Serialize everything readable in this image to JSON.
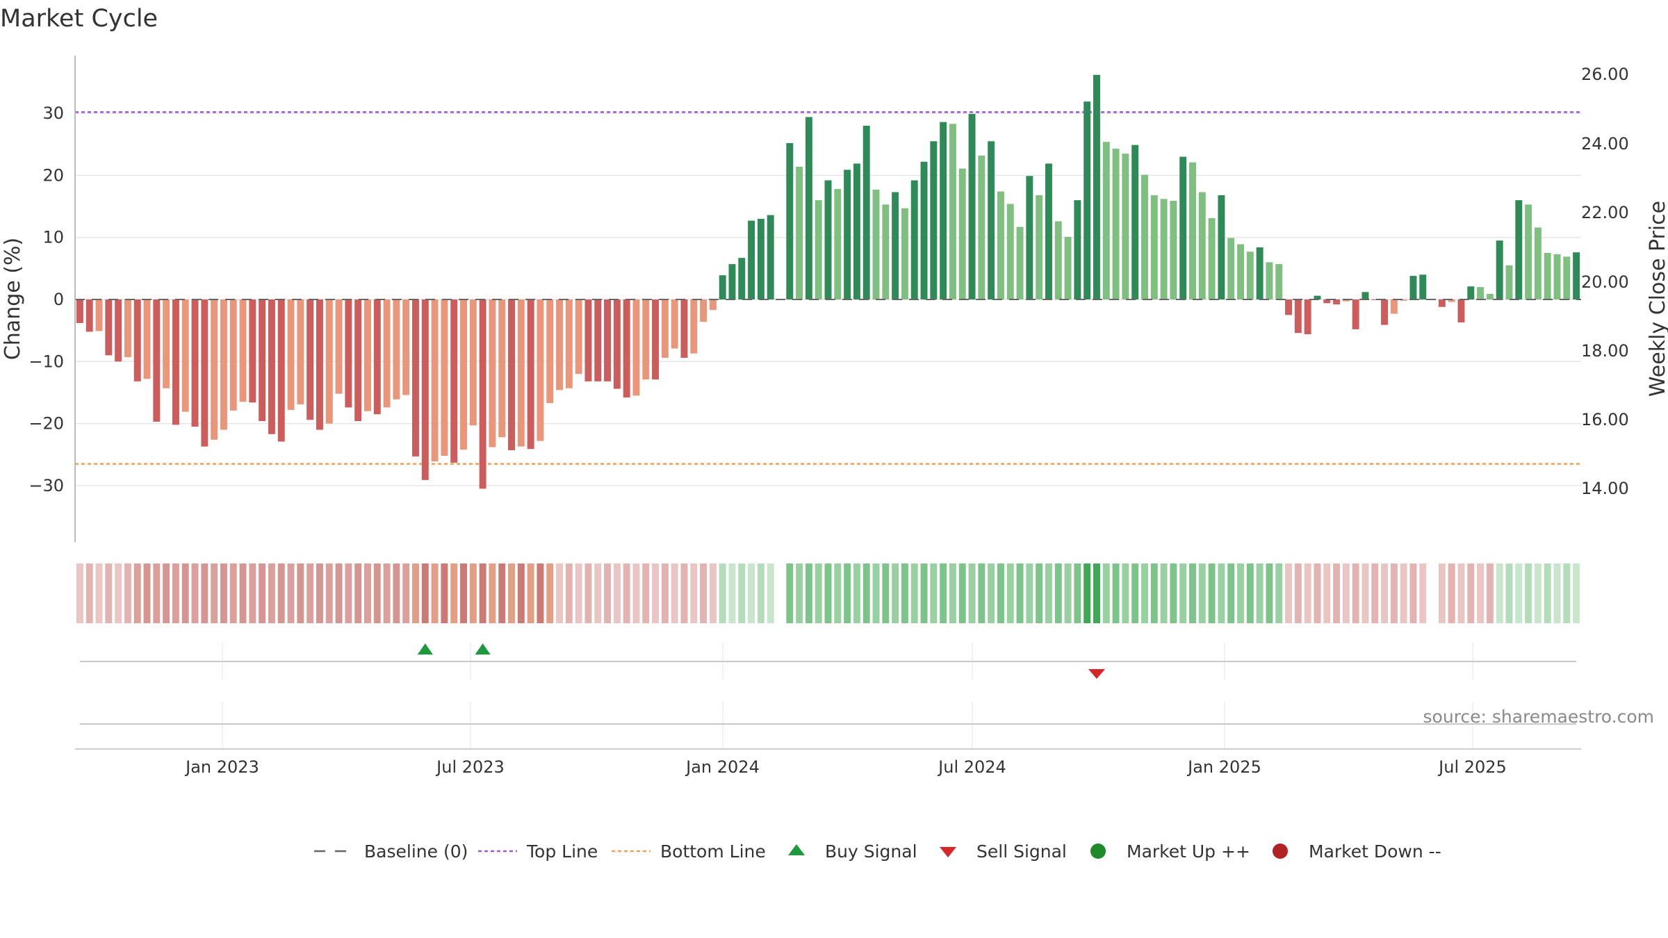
{
  "title": "Market Cycle",
  "source_note": "source: sharemaestro.com",
  "colors": {
    "strong_up": "#2e8b57",
    "mild_up": "#7fbf7f",
    "strong_down": "#cd5c5c",
    "mild_down": "#e9967a",
    "top_line": "#9b59d0",
    "bottom_line": "#f0a050",
    "buy": "#1a9a3a",
    "sell": "#d62728",
    "market_up": "#1f8a2a",
    "market_down": "#b22222"
  },
  "chart_data": {
    "type": "bar",
    "y_left": {
      "label": "Change (%)",
      "range": [
        -39,
        39
      ],
      "ticks": [
        -30,
        -20,
        -10,
        0,
        10,
        20,
        30
      ],
      "tick_labels": [
        "−30",
        "−20",
        "−10",
        "0",
        "10",
        "20",
        "30"
      ]
    },
    "y_right": {
      "label": "Weekly Close Price",
      "ticks": [
        "14.00",
        "16.00",
        "18.00",
        "20.00",
        "22.00",
        "24.00",
        "26.00"
      ]
    },
    "x": {
      "ticks": [
        "Jan 2023",
        "Jul 2023",
        "Jan 2024",
        "Jul 2024",
        "Jan 2025",
        "Jul 2025"
      ]
    },
    "top_line": 30.2,
    "bottom_line": -26.5,
    "values": [
      -3.8,
      -5.2,
      -5.1,
      -9,
      -10,
      -9.3,
      -13.2,
      -12.8,
      -19.7,
      -14.3,
      -20.2,
      -18.1,
      -20.5,
      -23.7,
      -22.6,
      -21,
      -17.9,
      -16.5,
      -16.6,
      -19.6,
      -21.7,
      -22.9,
      -17.8,
      -16.9,
      -19.4,
      -21,
      -20,
      -15.2,
      -17.4,
      -19.6,
      -18,
      -18.5,
      -17.4,
      -16.1,
      -15.4,
      -25.3,
      -29.1,
      -26.1,
      -25.2,
      -26.3,
      -24.2,
      -20.3,
      -30.5,
      -23.8,
      -22.2,
      -24.3,
      -23.7,
      -24.1,
      -22.8,
      -16.7,
      -14.6,
      -14.3,
      -12,
      -13.2,
      -13.2,
      -13.2,
      -14.4,
      -15.8,
      -15.5,
      -12.9,
      -12.9,
      -9.4,
      -7.9,
      -9.4,
      -8.7,
      -3.6,
      -1.7,
      3.9,
      5.7,
      6.7,
      12.7,
      13,
      13.6,
      null,
      25.2,
      21.4,
      29.4,
      16,
      19.2,
      17.8,
      20.9,
      21.9,
      28,
      17.7,
      15.3,
      17.3,
      14.7,
      19.2,
      22.2,
      25.5,
      28.6,
      28.3,
      21.1,
      29.9,
      23.2,
      25.5,
      17.4,
      15.4,
      11.7,
      19.9,
      16.8,
      21.9,
      12.6,
      10.1,
      16,
      31.9,
      36.2,
      25.4,
      24.3,
      23.5,
      24.9,
      20.1,
      16.8,
      16.2,
      15.9,
      23,
      22.1,
      17.3,
      13.1,
      16.8,
      9.9,
      8.9,
      7.7,
      8.4,
      6,
      5.7,
      -2.5,
      -5.4,
      -5.6,
      0.6,
      -0.6,
      -0.8,
      -0.3,
      -4.8,
      1.2,
      -0.1,
      -4.1,
      -2.3,
      -0.2,
      3.8,
      4,
      null,
      -1.2,
      -0.4,
      -3.7,
      2.1,
      2,
      0.9,
      9.5,
      5.5,
      16,
      15.3,
      11.6,
      7.5,
      7.3,
      6.9,
      7.6
    ],
    "strength_bands": [
      {
        "start": 0,
        "end": 5,
        "level": "mild_down"
      },
      {
        "start": 6,
        "end": 34,
        "level": "mid_down"
      },
      {
        "start": 35,
        "end": 49,
        "level": "strong_down"
      },
      {
        "start": 50,
        "end": 66,
        "level": "mild_down"
      },
      {
        "start": 67,
        "end": 73,
        "level": "mild_up"
      },
      {
        "start": 74,
        "end": 125,
        "level": "mid_up"
      },
      {
        "start": 126,
        "end": 147,
        "level": "mild_down"
      },
      {
        "start": 148,
        "end": 156,
        "level": "mild_up"
      }
    ],
    "buy_signals": [
      36,
      42
    ],
    "sell_signals": [
      106
    ],
    "legend": [
      "Baseline (0)",
      "Top Line",
      "Bottom Line",
      "Buy Signal",
      "Sell Signal",
      "Market Up ++",
      "Market Down --"
    ]
  }
}
